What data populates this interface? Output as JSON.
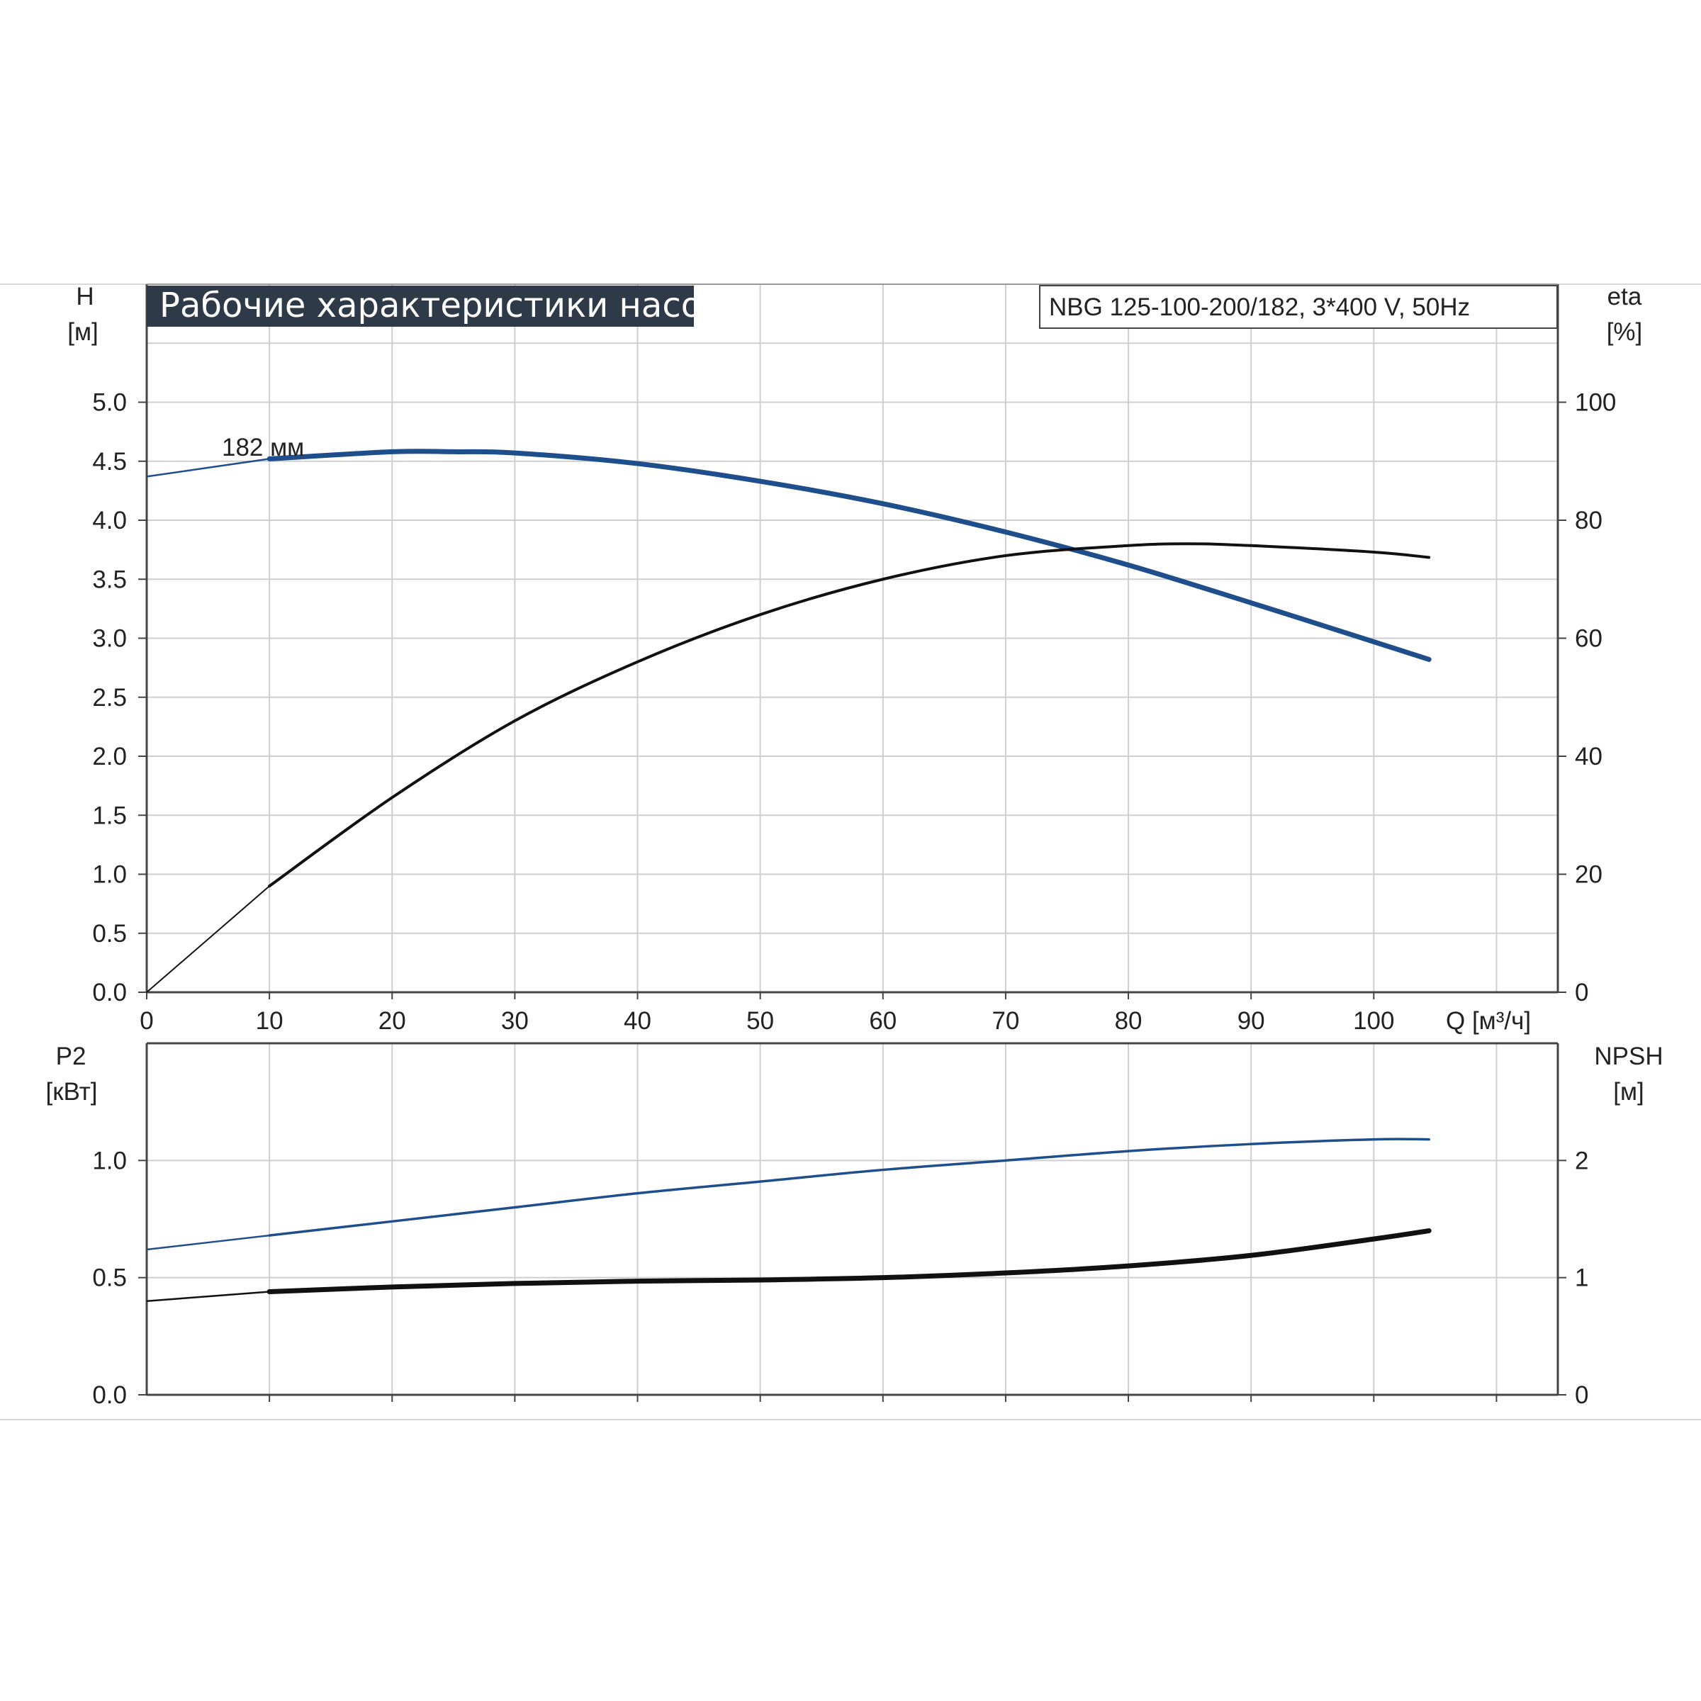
{
  "header": {
    "title": "Рабочие характеристики насоса",
    "model": "NBG 125-100-200/182, 3*400 V, 50Hz"
  },
  "colors": {
    "title_bg": "#2e3a48",
    "head_curve": "#1f4e8c",
    "efficiency_curve": "#111111",
    "power_curve": "#1f4e8c",
    "npsh_curve": "#111111",
    "grid": "#cfcfcf"
  },
  "chart_data": [
    {
      "type": "line",
      "x_ticks": [
        "0",
        "10",
        "20",
        "30",
        "40",
        "50",
        "60",
        "70",
        "80",
        "90",
        "100"
      ],
      "x_label": "Q [м³/ч]",
      "xlim": [
        0,
        115
      ],
      "left_axis": {
        "label_1": "H",
        "label_2": "[м]",
        "ylim": [
          0,
          6
        ],
        "ticks": [
          "0.0",
          "0.5",
          "1.0",
          "1.5",
          "2.0",
          "2.5",
          "3.0",
          "3.5",
          "4.0",
          "4.5",
          "5.0"
        ]
      },
      "right_axis": {
        "label_1": "eta",
        "label_2": "[%]",
        "ylim": [
          0,
          120
        ],
        "ticks": [
          "0",
          "20",
          "40",
          "60",
          "80",
          "100"
        ]
      },
      "series": [
        {
          "name": "182 мм",
          "axis": "left",
          "x": [
            0,
            10,
            20,
            25,
            30,
            40,
            50,
            60,
            70,
            80,
            90,
            100,
            104.5
          ],
          "y": [
            4.37,
            4.52,
            4.58,
            4.58,
            4.57,
            4.48,
            4.33,
            4.14,
            3.9,
            3.62,
            3.3,
            2.97,
            2.82
          ]
        },
        {
          "name": "",
          "axis": "right",
          "x": [
            0,
            5,
            10,
            20,
            30,
            40,
            50,
            60,
            70,
            80,
            85,
            90,
            100,
            104.5
          ],
          "y": [
            0,
            9,
            18,
            33,
            46,
            56,
            64,
            70,
            74,
            75.7,
            76,
            75.7,
            74.6,
            73.7
          ]
        }
      ]
    },
    {
      "type": "line",
      "x_ticks": [],
      "xlim": [
        0,
        115
      ],
      "left_axis": {
        "label_1": "P2",
        "label_2": "[кВт]",
        "ylim": [
          0,
          1.5
        ],
        "ticks": [
          "0.0",
          "0.5",
          "1.0"
        ]
      },
      "right_axis": {
        "label_1": "NPSH",
        "label_2": "[м]",
        "ylim": [
          0,
          3
        ],
        "ticks": [
          "0",
          "1",
          "2"
        ]
      },
      "series": [
        {
          "name": "",
          "axis": "left",
          "x": [
            0,
            10,
            20,
            30,
            40,
            50,
            60,
            70,
            80,
            90,
            100,
            104.5
          ],
          "y": [
            0.62,
            0.68,
            0.74,
            0.8,
            0.86,
            0.91,
            0.96,
            1.0,
            1.04,
            1.07,
            1.09,
            1.09
          ]
        },
        {
          "name": "",
          "axis": "right",
          "x": [
            0,
            10,
            20,
            30,
            40,
            50,
            60,
            70,
            80,
            90,
            100,
            104.5
          ],
          "y": [
            0.8,
            0.88,
            0.92,
            0.95,
            0.97,
            0.98,
            1.0,
            1.04,
            1.1,
            1.19,
            1.33,
            1.4
          ]
        }
      ]
    }
  ]
}
